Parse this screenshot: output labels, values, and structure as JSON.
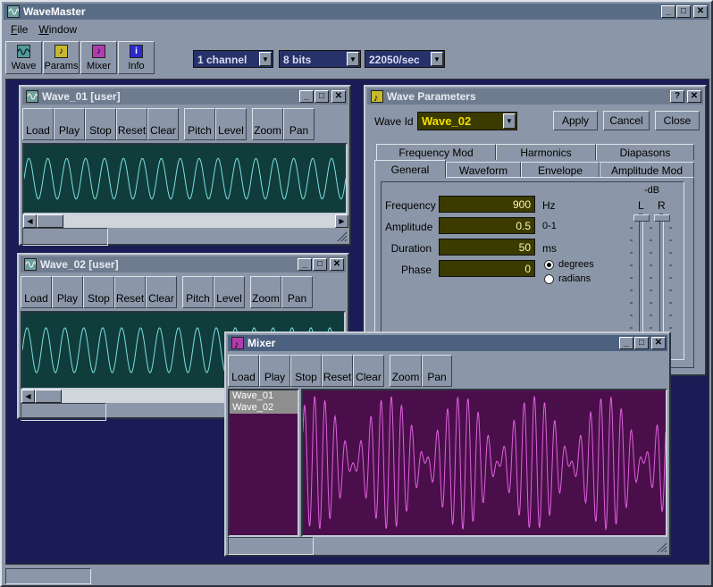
{
  "app": {
    "title": "WaveMaster"
  },
  "menu": [
    "File",
    "Window"
  ],
  "toolbar": [
    {
      "label": "Wave",
      "icon": "wave-icon",
      "color": "#4f9a9a"
    },
    {
      "label": "Params",
      "icon": "note-icon",
      "color": "#c8b830"
    },
    {
      "label": "Mixer",
      "icon": "mixer-icon",
      "color": "#b03cb0"
    },
    {
      "label": "Info",
      "icon": "info-icon",
      "color": "#2a2ad0"
    }
  ],
  "selects": {
    "channels": "1 channel",
    "bits": "8 bits",
    "rate": "22050/sec"
  },
  "wave_buttons": [
    "Load",
    "Play",
    "Stop",
    "Reset",
    "Clear",
    "Pitch",
    "Level",
    "Zoom",
    "Pan"
  ],
  "wave1": {
    "title": "Wave_01 [user]",
    "cycles": 17,
    "color": "#7de0e0"
  },
  "wave2": {
    "title": "Wave_02 [user]",
    "cycles": 17,
    "color": "#7de0e0"
  },
  "params": {
    "title": "Wave Parameters",
    "wave_id_label": "Wave Id",
    "wave_id_value": "Wave_02",
    "apply": "Apply",
    "cancel": "Cancel",
    "close": "Close",
    "tabs_back": [
      "Frequency Mod",
      "Harmonics",
      "Diapasons"
    ],
    "tabs_front": [
      "General",
      "Waveform",
      "Envelope",
      "Amplitude Mod"
    ],
    "fields": [
      {
        "label": "Frequency",
        "value": "900",
        "unit": "Hz"
      },
      {
        "label": "Amplitude",
        "value": "0.5",
        "unit": "0-1"
      },
      {
        "label": "Duration",
        "value": "50",
        "unit": "ms"
      },
      {
        "label": "Phase",
        "value": "0",
        "unit": ""
      }
    ],
    "phase_units": [
      "degrees",
      "radians"
    ],
    "phase_selected": "degrees",
    "db_label": "-dB",
    "left": "L",
    "right": "R"
  },
  "mixer": {
    "title": "Mixer",
    "buttons": [
      "Load",
      "Play",
      "Stop",
      "Reset",
      "Clear",
      "Zoom",
      "Pan"
    ],
    "tracks": [
      "Wave_01",
      "Wave_02"
    ],
    "color": "#e060e0"
  }
}
